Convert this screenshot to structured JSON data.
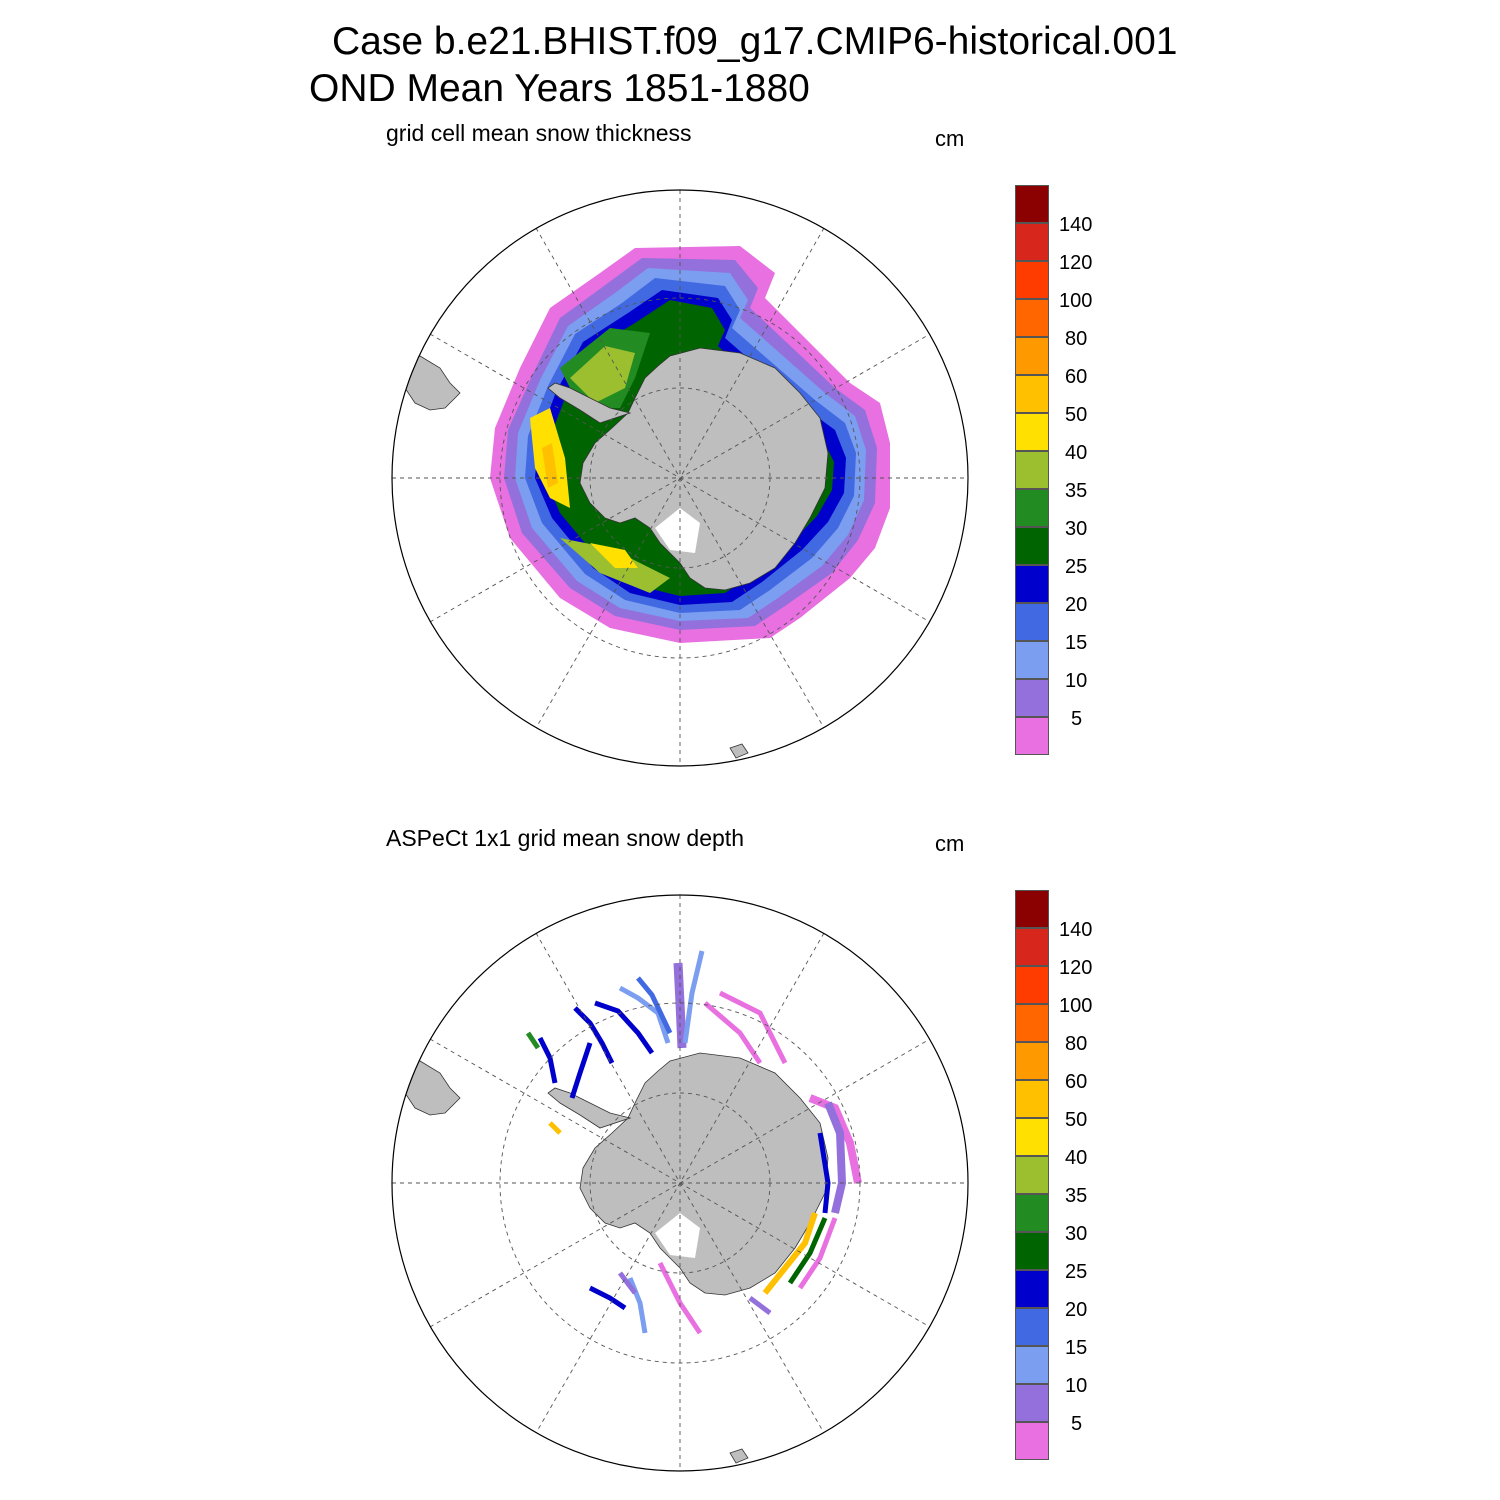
{
  "header": {
    "line1": "Case b.e21.BHIST.f09_g17.CMIP6-historical.001",
    "line2": "OND Mean   Years 1851-1880"
  },
  "panels": [
    {
      "id": "top",
      "label": "grid cell mean snow thickness",
      "units": "cm"
    },
    {
      "id": "bottom",
      "label": "ASPeCt 1x1 grid mean snow depth",
      "units": "cm"
    }
  ],
  "colorbar": {
    "labels": [
      "140",
      "120",
      "100",
      "80",
      "60",
      "50",
      "40",
      "35",
      "30",
      "25",
      "20",
      "15",
      "10",
      "5"
    ],
    "colors": [
      "#8b0000",
      "#d7261b",
      "#ff3c00",
      "#ff6600",
      "#ff9900",
      "#ffc000",
      "#ffe000",
      "#9bbf2e",
      "#228b22",
      "#006400",
      "#0000cc",
      "#4169e1",
      "#7b9ef0",
      "#9370db",
      "#e870e0"
    ]
  },
  "colors": {
    "land": "#bebebe",
    "coast": "#333333",
    "grid": "#555555"
  }
}
